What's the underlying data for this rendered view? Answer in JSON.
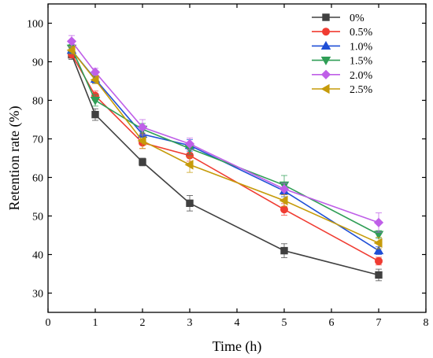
{
  "chart_data": {
    "type": "line",
    "xlabel": "Time (h)",
    "ylabel": "Retention rate (%)",
    "xlim": [
      0,
      8
    ],
    "ylim": [
      25,
      105
    ],
    "xticks": [
      0,
      1,
      2,
      3,
      4,
      5,
      6,
      7,
      8
    ],
    "yticks": [
      30,
      40,
      50,
      60,
      70,
      80,
      90,
      100
    ],
    "grid": false,
    "legend_position": "top-right",
    "x": [
      0.5,
      1,
      2,
      3,
      5,
      7
    ],
    "series": [
      {
        "name": "0%",
        "color": "#404040",
        "marker": "square",
        "values": [
          91.8,
          76.3,
          64.0,
          53.3,
          41.0,
          34.7
        ],
        "errors": [
          1.2,
          1.5,
          1.0,
          2.0,
          1.8,
          1.5
        ]
      },
      {
        "name": "0.5%",
        "color": "#f03c32",
        "marker": "circle",
        "values": [
          92.0,
          81.2,
          69.0,
          65.7,
          51.7,
          38.3
        ],
        "errors": [
          1.0,
          1.2,
          1.5,
          1.5,
          1.5,
          1.0
        ]
      },
      {
        "name": "1.0%",
        "color": "#1f4fd6",
        "marker": "triangle-up",
        "values": [
          93.0,
          85.5,
          71.2,
          68.3,
          56.5,
          41.0
        ],
        "errors": [
          1.0,
          1.0,
          2.0,
          1.5,
          1.5,
          1.0
        ]
      },
      {
        "name": "1.5%",
        "color": "#2f9e56",
        "marker": "triangle-down",
        "values": [
          93.5,
          80.0,
          72.5,
          67.5,
          58.0,
          45.2
        ],
        "errors": [
          1.0,
          1.5,
          1.5,
          1.5,
          2.5,
          1.0
        ]
      },
      {
        "name": "2.0%",
        "color": "#bf5fe8",
        "marker": "diamond",
        "values": [
          95.3,
          87.3,
          73.0,
          68.7,
          57.0,
          48.3
        ],
        "errors": [
          1.5,
          1.0,
          2.0,
          1.5,
          1.5,
          2.5
        ]
      },
      {
        "name": "2.5%",
        "color": "#c69b0a",
        "marker": "triangle-left",
        "values": [
          93.0,
          85.3,
          69.5,
          63.3,
          54.0,
          43.0
        ],
        "errors": [
          1.0,
          1.0,
          2.0,
          2.0,
          1.5,
          1.5
        ]
      }
    ]
  }
}
